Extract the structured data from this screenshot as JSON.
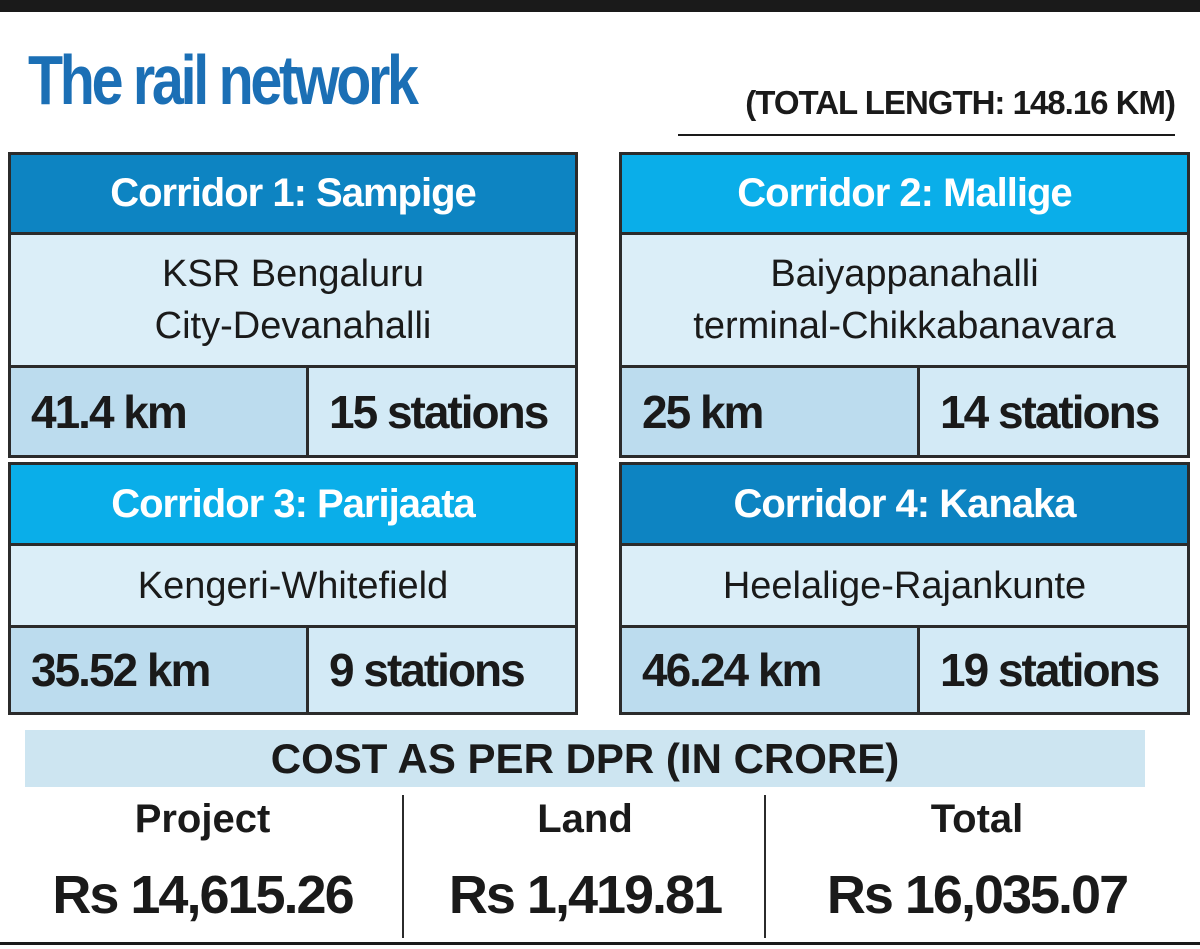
{
  "header": {
    "title": "The rail network",
    "note": "(TOTAL LENGTH: 148.16 KM)"
  },
  "corridors": [
    {
      "name": "Corridor 1: Sampige",
      "route": [
        "KSR Bengaluru",
        "City-Devanahalli"
      ],
      "length": "41.4 km",
      "stations": "15 stations"
    },
    {
      "name": "Corridor 2: Mallige",
      "route": [
        "Baiyappanahalli",
        "terminal-Chikkabanavara"
      ],
      "length": "25 km",
      "stations": "14 stations"
    },
    {
      "name": "Corridor 3: Parijaata",
      "route": [
        "Kengeri-Whitefield"
      ],
      "length": "35.52 km",
      "stations": "9 stations"
    },
    {
      "name": "Corridor 4: Kanaka",
      "route": [
        "Heelalige-Rajankunte"
      ],
      "length": "46.24 km",
      "stations": "19 stations"
    }
  ],
  "cost": {
    "title": "COST AS PER DPR (IN CRORE)",
    "columns": [
      {
        "label": "Project",
        "value": "Rs 14,615.26"
      },
      {
        "label": "Land",
        "value": "Rs 1,419.81"
      },
      {
        "label": "Total",
        "value": "Rs 16,035.07"
      }
    ]
  }
}
